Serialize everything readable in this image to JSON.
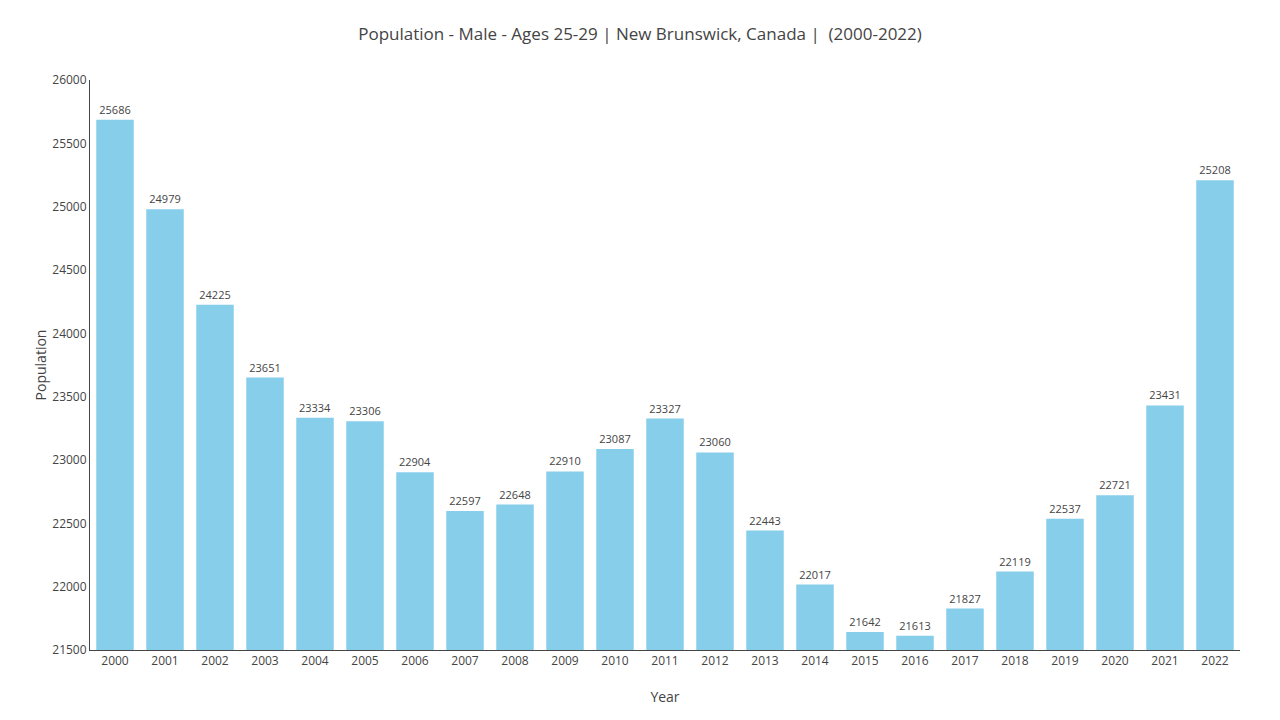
{
  "chart_data": {
    "type": "bar",
    "title": "Population - Male - Ages 25-29 | New Brunswick, Canada |  (2000-2022)",
    "xlabel": "Year",
    "ylabel": "Population",
    "categories": [
      "2000",
      "2001",
      "2002",
      "2003",
      "2004",
      "2005",
      "2006",
      "2007",
      "2008",
      "2009",
      "2010",
      "2011",
      "2012",
      "2013",
      "2014",
      "2015",
      "2016",
      "2017",
      "2018",
      "2019",
      "2020",
      "2021",
      "2022"
    ],
    "values": [
      25686,
      24979,
      24225,
      23651,
      23334,
      23306,
      22904,
      22597,
      22648,
      22910,
      23087,
      23327,
      23060,
      22443,
      22017,
      21642,
      21613,
      21827,
      22119,
      22537,
      22721,
      23431,
      25208
    ],
    "color": "#87CEEB",
    "ylim": [
      21500,
      26000
    ],
    "yticks": [
      21500,
      22000,
      22500,
      23000,
      23500,
      24000,
      24500,
      25000,
      25500,
      26000
    ],
    "grid": false,
    "data_labels": true
  }
}
